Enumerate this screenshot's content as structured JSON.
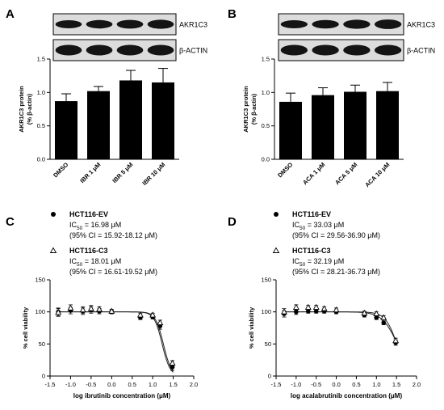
{
  "chart_data": [
    {
      "panel": "A",
      "type": "bar",
      "ylabel_lines": [
        "AKR1C3 protein",
        "(% β-actin)"
      ],
      "categories": [
        "DMSO",
        "IBR 1 μM",
        "IBR 5 μM",
        "IBR 10 μM"
      ],
      "values": [
        0.87,
        1.02,
        1.18,
        1.15
      ],
      "errors": [
        0.11,
        0.07,
        0.15,
        0.21
      ],
      "ylim": [
        0,
        1.5
      ],
      "yticks": [
        "0.0",
        "0.5",
        "1.0",
        "1.5"
      ],
      "blot_labels": [
        "AKR1C3",
        "β-ACTIN"
      ]
    },
    {
      "panel": "B",
      "type": "bar",
      "ylabel_lines": [
        "AKR1C3 protein",
        "(% β-actin)"
      ],
      "categories": [
        "DMSO",
        "ACA 1 μM",
        "ACA 5 μM",
        "ACA 10 μM"
      ],
      "values": [
        0.86,
        0.96,
        1.01,
        1.02
      ],
      "errors": [
        0.13,
        0.11,
        0.1,
        0.13
      ],
      "ylim": [
        0,
        1.5
      ],
      "yticks": [
        "0.0",
        "0.5",
        "1.0",
        "1.5"
      ],
      "blot_labels": [
        "AKR1C3",
        "β-ACTIN"
      ]
    },
    {
      "panel": "C",
      "type": "scatter",
      "xlabel_prefix": "log ibrutinib concentration (",
      "xlabel_unit": "μM",
      "xlabel_suffix": ")",
      "ylabel": "% cell viability",
      "xlim": [
        -1.5,
        2.0
      ],
      "ylim": [
        0,
        150
      ],
      "xticks": [
        "-1.5",
        "-1.0",
        "-0.5",
        "0.0",
        "0.5",
        "1.0",
        "1.5",
        "2.0"
      ],
      "yticks": [
        "0",
        "50",
        "100",
        "150"
      ],
      "series": [
        {
          "name": "HCT116-EV",
          "marker": "circle",
          "ic50_prefix": "IC",
          "ic50_sub": "50",
          "ic50_text": " = 16.98 μM",
          "ci_text": "(95% CI = 15.92-18.12 μM)",
          "x": [
            -1.3,
            -1.0,
            -0.7,
            -0.5,
            -0.3,
            0.0,
            0.7,
            1.0,
            1.18,
            1.48
          ],
          "y": [
            100,
            102,
            101,
            103,
            101,
            100,
            91,
            92,
            78,
            14
          ],
          "err": [
            6,
            5,
            5,
            5,
            4,
            3,
            3,
            3,
            5,
            5
          ],
          "fit_ic50_log": 1.23,
          "fit_hill": -4.5
        },
        {
          "name": "HCT116-C3",
          "marker": "triangle",
          "ic50_prefix": "IC",
          "ic50_sub": "50",
          "ic50_text": " = 18.01 μM",
          "ci_text": "(95% CI = 16.61-19.52 μM)",
          "x": [
            -1.3,
            -1.0,
            -0.7,
            -0.5,
            -0.3,
            0.0,
            0.7,
            1.0,
            1.18,
            1.48
          ],
          "y": [
            99,
            106,
            103,
            105,
            104,
            101,
            95,
            95,
            83,
            20
          ],
          "err": [
            6,
            5,
            5,
            5,
            4,
            3,
            3,
            3,
            4,
            4
          ],
          "fit_ic50_log": 1.26,
          "fit_hill": -4.5
        }
      ]
    },
    {
      "panel": "D",
      "type": "scatter",
      "xlabel_prefix": "log acalabrutinib concentration (",
      "xlabel_unit": "μM",
      "xlabel_suffix": ")",
      "ylabel": "% cell viability",
      "xlim": [
        -1.5,
        2.0
      ],
      "ylim": [
        0,
        150
      ],
      "xticks": [
        "-1.5",
        "-1.0",
        "-0.5",
        "0.0",
        "0.5",
        "1.0",
        "1.5",
        "2.0"
      ],
      "yticks": [
        "0",
        "50",
        "100",
        "150"
      ],
      "series": [
        {
          "name": "HCT116-EV",
          "marker": "circle",
          "ic50_prefix": "IC",
          "ic50_sub": "50",
          "ic50_text": " = 33.03 μM",
          "ci_text": "(95% CI = 29.56-36.90 μM)",
          "x": [
            -1.3,
            -1.0,
            -0.7,
            -0.5,
            -0.3,
            0.0,
            0.7,
            1.0,
            1.18,
            1.48
          ],
          "y": [
            97,
            100,
            101,
            101,
            101,
            100,
            95,
            91,
            83,
            52
          ],
          "err": [
            5,
            4,
            3,
            3,
            3,
            3,
            3,
            3,
            3,
            4
          ],
          "fit_ic50_log": 1.52,
          "fit_hill": -2.3
        },
        {
          "name": "HCT116-C3",
          "marker": "triangle",
          "ic50_prefix": "IC",
          "ic50_sub": "50",
          "ic50_text": " = 32.19 μM",
          "ci_text": "(95% CI = 28.21-36.73 μM)",
          "x": [
            -1.3,
            -1.0,
            -0.7,
            -0.5,
            -0.3,
            0.0,
            0.7,
            1.0,
            1.18,
            1.48
          ],
          "y": [
            100,
            107,
            107,
            107,
            105,
            103,
            98,
            97,
            91,
            55
          ],
          "err": [
            5,
            4,
            3,
            3,
            3,
            3,
            3,
            3,
            3,
            4
          ],
          "fit_ic50_log": 1.51,
          "fit_hill": -3.0
        }
      ]
    }
  ]
}
